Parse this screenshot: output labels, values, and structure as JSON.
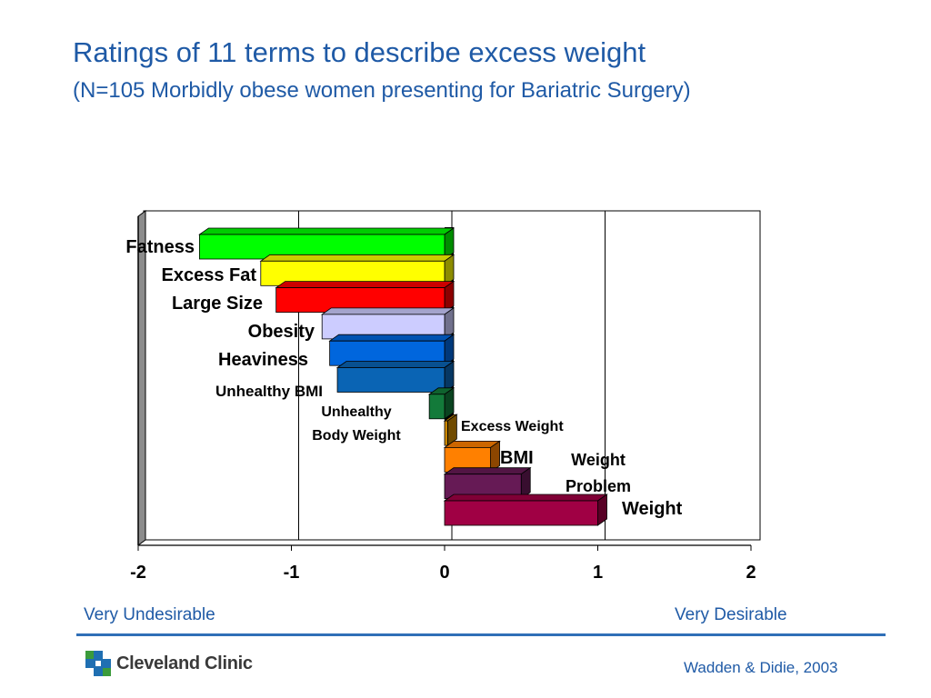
{
  "title": "Ratings of 11 terms to describe excess weight",
  "subtitle": "(N=105 Morbidly obese women presenting for Bariatric Surgery)",
  "colors": {
    "title": "#1f5aa6",
    "Fatness": "#00ff00",
    "Excess Fat": "#ffff00",
    "Large Size": "#ff0000",
    "Obesity": "#ccccff",
    "Heaviness": "#0066dd",
    "Unhealthy BMI": "#0a64b4",
    "Unhealthy Body Weight": "#137a3a",
    "Excess Weight": "#cc8800",
    "BMI": "#ff8000",
    "Weight Problem": "#661a55",
    "Weight": "#a00044"
  },
  "chart_data": {
    "type": "bar",
    "orientation": "horizontal",
    "categories": [
      "Fatness",
      "Excess Fat",
      "Large Size",
      "Obesity",
      "Heaviness",
      "Unhealthy BMI",
      "Unhealthy Body Weight",
      "Excess Weight",
      "BMI",
      "Weight Problem",
      "Weight"
    ],
    "values": [
      -1.6,
      -1.2,
      -1.1,
      -0.8,
      -0.75,
      -0.7,
      -0.1,
      0.02,
      0.3,
      0.5,
      1.0
    ],
    "xlim": [
      -2,
      2
    ],
    "xticks": [
      "-2",
      "-1",
      "0",
      "1",
      "2"
    ],
    "grid": true,
    "annotations": {
      "left": "Very Undesirable",
      "right": "Very Desirable"
    }
  },
  "footer": {
    "logo_text": "Cleveland Clinic",
    "citation": "Wadden & Didie, 2003"
  }
}
